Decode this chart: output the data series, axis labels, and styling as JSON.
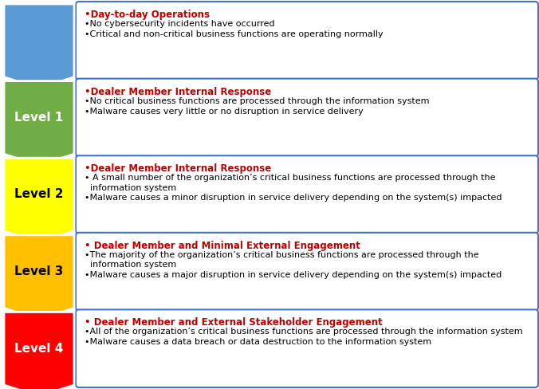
{
  "rows": [
    {
      "label": "",
      "color": "#5B9BD5",
      "text_color": "#FFFFFF",
      "heading": "•Day-to-day Operations",
      "bullets": [
        "•No cybersecurity incidents have occurred",
        "•Critical and non-critical business functions are operating normally"
      ]
    },
    {
      "label": "Level 1",
      "color": "#70AD47",
      "text_color": "#FFFFFF",
      "heading": "•Dealer Member Internal Response",
      "bullets": [
        "•No critical business functions are processed through the information system",
        "•Malware causes very little or no disruption in service delivery"
      ]
    },
    {
      "label": "Level 2",
      "color": "#FFFF00",
      "text_color": "#000000",
      "heading": "•Dealer Member Internal Response",
      "bullets": [
        "• A small number of the organization’s critical business functions are processed through the\n  information system",
        "•Malware causes a minor disruption in service delivery depending on the system(s) impacted"
      ]
    },
    {
      "label": "Level 3",
      "color": "#FFC000",
      "text_color": "#000000",
      "heading": "• Dealer Member and Minimal External Engagement",
      "bullets": [
        "•The majority of the organization’s critical business functions are processed through the\n  information system",
        "•Malware causes a major disruption in service delivery depending on the system(s) impacted"
      ]
    },
    {
      "label": "Level 4",
      "color": "#FF0000",
      "text_color": "#FFFFFF",
      "heading": "• Dealer Member and External Stakeholder Engagement",
      "bullets": [
        "•All of the organization’s critical business functions are processed through the information system",
        "•Malware causes a data breach or data destruction to the information system"
      ]
    }
  ],
  "heading_color": "#C00000",
  "bullet_color": "#000000",
  "box_border_color": "#4472C4",
  "background_color": "#FFFFFF",
  "heading_fontsize": 8.5,
  "bullet_fontsize": 8.0,
  "label_fontsize": 11
}
